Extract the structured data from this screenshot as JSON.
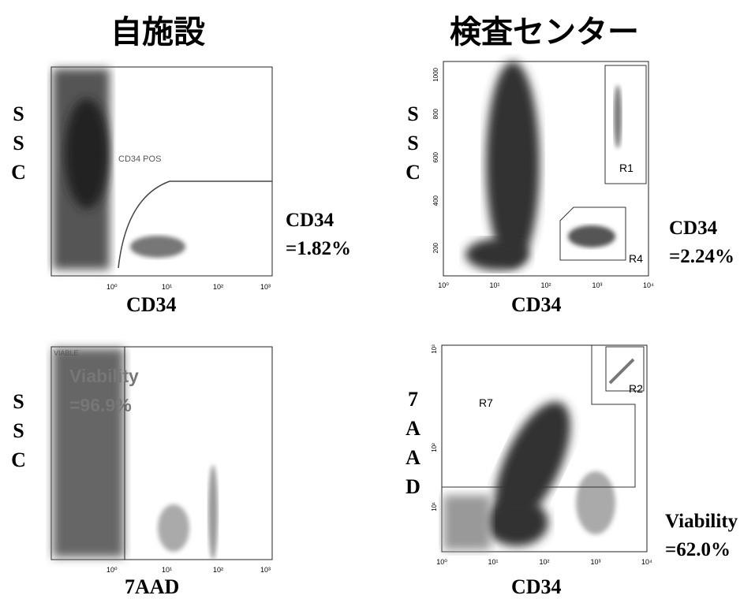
{
  "headers": [
    "自施設",
    "検査センター"
  ],
  "panels": [
    {
      "y_label": "SSC",
      "x_label": "CD34",
      "gate_label": "CD34 POS",
      "result_name": "CD34",
      "result_value": "=1.82%",
      "x_ticks": [
        "10⁰",
        "10¹",
        "10²",
        "10³"
      ]
    },
    {
      "y_label": "SSC",
      "x_label": "CD34",
      "regions": [
        "R1",
        "R4"
      ],
      "result_name": "CD34",
      "result_value": "=2.24%",
      "x_ticks": [
        "10⁰",
        "10¹",
        "10²",
        "10³",
        "10⁴"
      ],
      "y_ticks": [
        "200",
        "400",
        "600",
        "800",
        "1000"
      ]
    },
    {
      "y_label": "SSC",
      "x_label": "7AAD",
      "gate_label": "VIABLE",
      "result_name": "Viability",
      "result_value": "=96.9%",
      "x_ticks": [
        "10⁰",
        "10¹",
        "10²",
        "10³"
      ]
    },
    {
      "y_label": "7AAD",
      "x_label": "CD34",
      "regions": [
        "R7",
        "R2"
      ],
      "result_name": "Viability",
      "result_value": "=62.0%",
      "x_ticks": [
        "10⁰",
        "10¹",
        "10²",
        "10³",
        "10⁴"
      ],
      "y_ticks": [
        "10¹",
        "10²",
        "10³"
      ]
    }
  ]
}
